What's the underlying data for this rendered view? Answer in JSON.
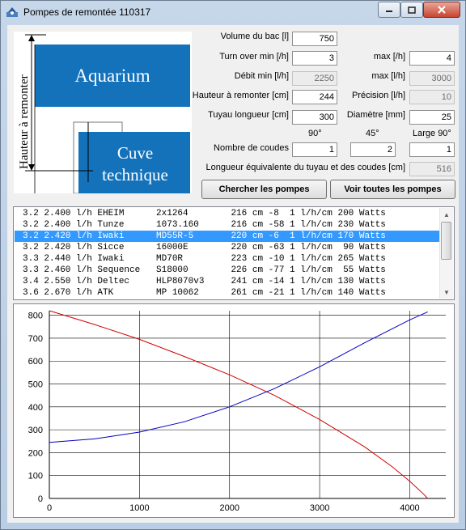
{
  "window": {
    "title": "Pompes de remontée 110317",
    "controls": [
      "minimize-icon",
      "maximize-icon",
      "close-icon"
    ]
  },
  "diagram": {
    "aquarium": "Aquarium",
    "cuve_line1": "Cuve",
    "cuve_line2": "technique",
    "hauteur": "Hauteur à remonter",
    "colors": {
      "water": "#1472bb",
      "line": "#000000"
    }
  },
  "params": {
    "volume_label": "Volume du bac [l]",
    "volume_value": "750",
    "turnover_label": "Turn over min [/h]",
    "turnover_value": "3",
    "turnover_max_label": "max [/h]",
    "turnover_max_value": "4",
    "debit_label": "Débit min [l/h]",
    "debit_value": "2250",
    "debit_max_label": "max [l/h]",
    "debit_max_value": "3000",
    "hauteur_label": "Hauteur à remonter [cm]",
    "hauteur_value": "244",
    "precision_label": "Précision [l/h]",
    "precision_value": "10",
    "tuyau_label": "Tuyau longueur [cm]",
    "tuyau_value": "300",
    "diametre_label": "Diamètre [mm]",
    "diametre_value": "25",
    "coude_h90": "90°",
    "coude_h45": "45°",
    "coude_hlarge": "Large 90°",
    "coudes_label": "Nombre de coudes",
    "coudes_90": "1",
    "coudes_45": "2",
    "coudes_large": "1",
    "equiv_label": "Longueur équivalente du tuyau et des coudes [cm]",
    "equiv_value": "516"
  },
  "buttons": {
    "chercher": "Chercher les pompes",
    "voir": "Voir toutes les pompes"
  },
  "results": {
    "selected_index": 2,
    "rows": [
      "3.2 2.400 l/h EHEIM      2x1264        216 cm -8  1 l/h/cm 200 Watts",
      "3.2 2.400 l/h Tunze      1073.160      216 cm -58 1 l/h/cm 230 Watts",
      "3.2 2.420 l/h Iwaki      MD55R-5       220 cm -6  1 l/h/cm 170 Watts",
      "3.2 2.420 l/h Sicce      16000E        220 cm -63 1 l/h/cm  90 Watts",
      "3.3 2.440 l/h Iwaki      MD70R         223 cm -10 1 l/h/cm 265 Watts",
      "3.3 2.460 l/h Sequence   S18000        226 cm -77 1 l/h/cm  55 Watts",
      "3.4 2.550 l/h Deltec     HLP8070v3     241 cm -14 1 l/h/cm 130 Watts",
      "3.6 2.670 l/h ATK        MP 10062      261 cm -21 1 l/h/cm 140 Watts"
    ]
  },
  "chart_data": {
    "type": "line",
    "title": "",
    "xlabel": "",
    "ylabel": "",
    "xlim": [
      0,
      4400
    ],
    "ylim": [
      0,
      820
    ],
    "xticks": [
      0,
      1000,
      2000,
      3000,
      4000
    ],
    "yticks": [
      0,
      100,
      200,
      300,
      400,
      500,
      600,
      700,
      800
    ],
    "grid": true,
    "series": [
      {
        "color": "#d00000",
        "x": [
          0,
          500,
          1000,
          1500,
          2000,
          2500,
          3000,
          3500,
          3800,
          4000,
          4150,
          4200
        ],
        "y": [
          820,
          760,
          695,
          620,
          540,
          450,
          345,
          225,
          140,
          75,
          20,
          0
        ]
      },
      {
        "color": "#0000c0",
        "x": [
          0,
          500,
          1000,
          1500,
          2000,
          2500,
          3000,
          3500,
          4000,
          4200
        ],
        "y": [
          245,
          260,
          290,
          335,
          400,
          480,
          575,
          680,
          780,
          815
        ]
      }
    ]
  }
}
